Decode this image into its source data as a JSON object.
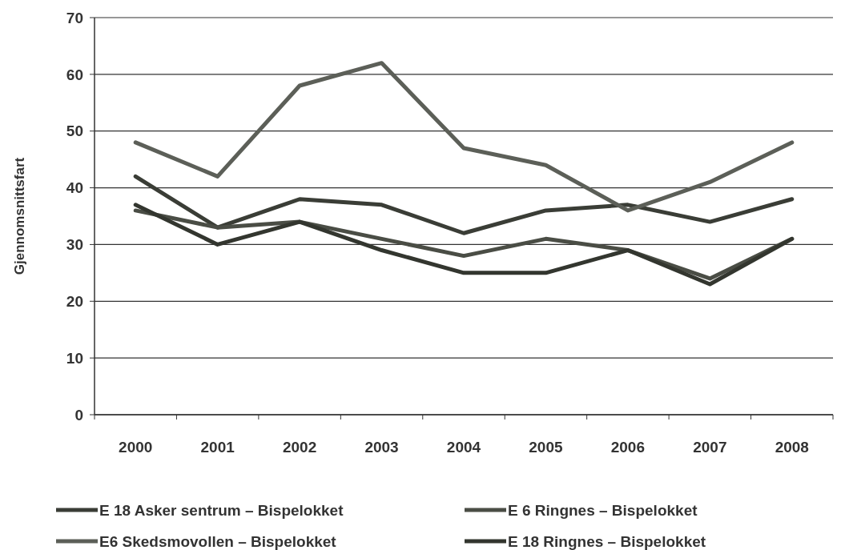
{
  "chart_data": {
    "type": "line",
    "ylabel": "Gjennomsnittsfart",
    "categories": [
      "2000",
      "2001",
      "2002",
      "2003",
      "2004",
      "2005",
      "2006",
      "2007",
      "2008"
    ],
    "series": [
      {
        "name": "E 18 Asker sentrum – Bispelokket",
        "color": "#3a3d36",
        "values": [
          42,
          33,
          38,
          37,
          32,
          36,
          37,
          34,
          38
        ]
      },
      {
        "name": "E 6 Ringnes – Bispelokket",
        "color": "#4a4d45",
        "values": [
          36,
          33,
          34,
          31,
          28,
          31,
          29,
          24,
          31
        ]
      },
      {
        "name": "E6 Skedsmovollen – Bispelokket",
        "color": "#5c5f58",
        "values": [
          48,
          42,
          58,
          62,
          47,
          44,
          36,
          41,
          48
        ]
      },
      {
        "name": "E 18 Ringnes – Bispelokket",
        "color": "#33362f",
        "values": [
          37,
          30,
          34,
          29,
          25,
          25,
          29,
          23,
          31
        ]
      }
    ],
    "ylim": [
      0,
      70
    ],
    "yticks": [
      0,
      10,
      20,
      30,
      40,
      50,
      60,
      70
    ],
    "grid": "y",
    "legend": "bottom",
    "marker": "none",
    "line_style": "solid"
  }
}
